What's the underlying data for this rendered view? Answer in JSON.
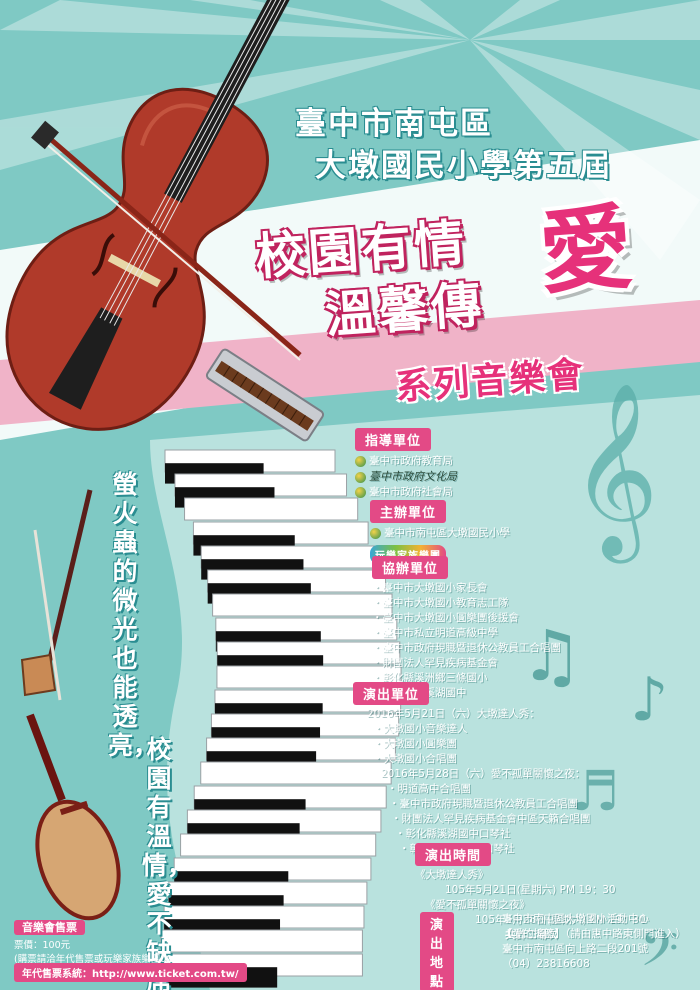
{
  "colors": {
    "background": "#7fc9c4",
    "accent_pink": "#e34a86",
    "love_pink": "#e6317a",
    "teal_dark": "#2a8d91"
  },
  "header": {
    "line1": "臺中市南屯區",
    "line2": "大墩國民小學第五屆",
    "title_line1": "校園有情",
    "title_line2": "溫馨傳",
    "title_love": "愛",
    "subtitle": "系列音樂會"
  },
  "vertical_slogan": {
    "col1": "螢火蟲的微光也能透亮，",
    "col2": "校園有溫情，愛不缺席"
  },
  "sections": {
    "guidance": {
      "label": "指導單位",
      "items": [
        "臺中市政府教育局",
        "臺中市政府文化局",
        "臺中市政府社會局"
      ]
    },
    "organizer": {
      "label": "主辦單位",
      "items": [
        "臺中市南屯區大墩國民小學"
      ],
      "logo_text": "玩樂家族樂團"
    },
    "co_organizers": {
      "label": "協辦單位",
      "items": [
        "臺中市大墩國小家長會",
        "臺中市大墩國小教育志工隊",
        "臺中市大墩國小圓樂團後援會",
        "臺中市私立明道高級中學",
        "臺中市政府現職暨退休公教員工合唱團",
        "財團法人罕見疾病基金會",
        "彰化縣溪洲鄉三條國小",
        "彰化縣立溪湖國中"
      ]
    },
    "performers": {
      "label": "演出單位",
      "day1_header": "2016年5月21日（六）大墩達人秀：",
      "day1_items": [
        "大墩國小音樂達人",
        "大墩國小圓樂團",
        "大墩國小合唱團"
      ],
      "day2_header": "2016年5月28日（六）愛不孤單關懷之夜：",
      "day2_items": [
        "明道高中合唱團",
        "臺中市政府現職暨退休公教員工合唱團",
        "財團法人罕見疾病基金會中區天籟合唱團",
        "彰化縣溪湖國中口琴社",
        "彰化縣三條國小口琴社"
      ]
    },
    "time": {
      "label": "演出時間",
      "show1_name": "《大墩達人秀》",
      "show1_time": "105年5月21日(星期六) PM 19：30",
      "show2_name": "《愛不孤單關懷之夜》",
      "show2_time": "105年5月28日(星期六) PM 19：30",
      "total": "共計二場次"
    },
    "venue": {
      "label": "演出地點",
      "line1": "臺中市南屯區大墩國小活動中心",
      "line2": "【愛的搖籃】（請由惠中路東側門進入）",
      "line3": "臺中市南屯區向上路二段201號",
      "line4": "（04）23816608"
    }
  },
  "ticket": {
    "title": "音樂會售票",
    "price": "票價：100元",
    "contact": "(購票請洽年代售票或玩樂家族樂團0927-728968)",
    "system": "年代售票系統：http://www.ticket.com.tw/"
  }
}
